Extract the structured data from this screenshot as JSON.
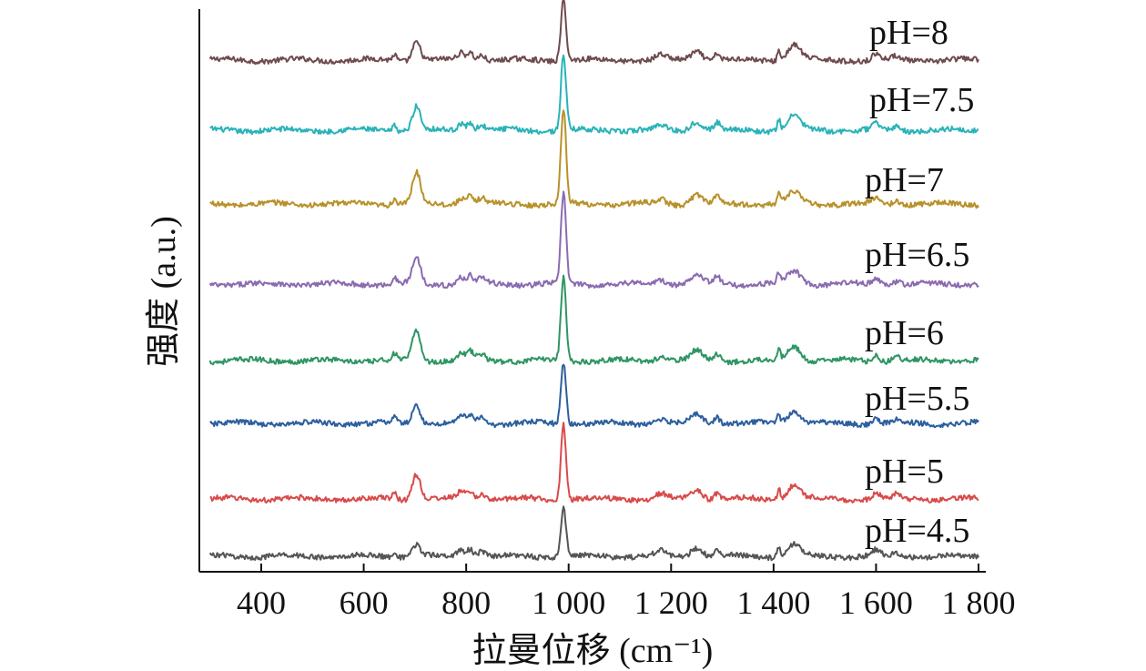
{
  "chart_data": {
    "type": "line",
    "title": "",
    "xlabel": "拉曼位移 (cm⁻¹)",
    "ylabel": "强度 (a.u.)",
    "xlim": [
      300,
      1800
    ],
    "x_ticks": [
      400,
      600,
      800,
      1000,
      1200,
      1400,
      1600,
      1800
    ],
    "x_tick_labels": [
      "400",
      "600",
      "800",
      "1 000",
      "1 200",
      "1 400",
      "1 600",
      "1 800"
    ],
    "y_ticks_shown": false,
    "legend": "inline-right",
    "peaks_cm-1": [
      700,
      800,
      990,
      1250,
      1290,
      1410,
      1440,
      1600
    ],
    "series": [
      {
        "name": "pH=8",
        "color": "#6e4b4e",
        "peak_height": {
          "700": 0.8,
          "990": 2.6,
          "1440": 0.65
        }
      },
      {
        "name": "pH=7.5",
        "color": "#2ab3b8",
        "peak_height": {
          "700": 1.0,
          "990": 3.2,
          "1440": 0.6
        }
      },
      {
        "name": "pH=7",
        "color": "#b8912a",
        "peak_height": {
          "700": 1.3,
          "990": 4.0,
          "1440": 0.5
        }
      },
      {
        "name": "pH=6.5",
        "color": "#8b6bb0",
        "peak_height": {
          "700": 1.1,
          "990": 3.8,
          "1440": 0.55
        }
      },
      {
        "name": "pH=6",
        "color": "#2e9563",
        "peak_height": {
          "700": 1.3,
          "990": 3.6,
          "1440": 0.6
        }
      },
      {
        "name": "pH=5.5",
        "color": "#2c5f9e",
        "peak_height": {
          "700": 0.8,
          "990": 2.6,
          "1440": 0.55
        }
      },
      {
        "name": "pH=5",
        "color": "#d94a4a",
        "peak_height": {
          "700": 1.1,
          "990": 3.2,
          "1440": 0.6
        }
      },
      {
        "name": "pH=4.5",
        "color": "#555555",
        "peak_height": {
          "700": 0.5,
          "990": 2.1,
          "1440": 0.5
        }
      }
    ]
  }
}
